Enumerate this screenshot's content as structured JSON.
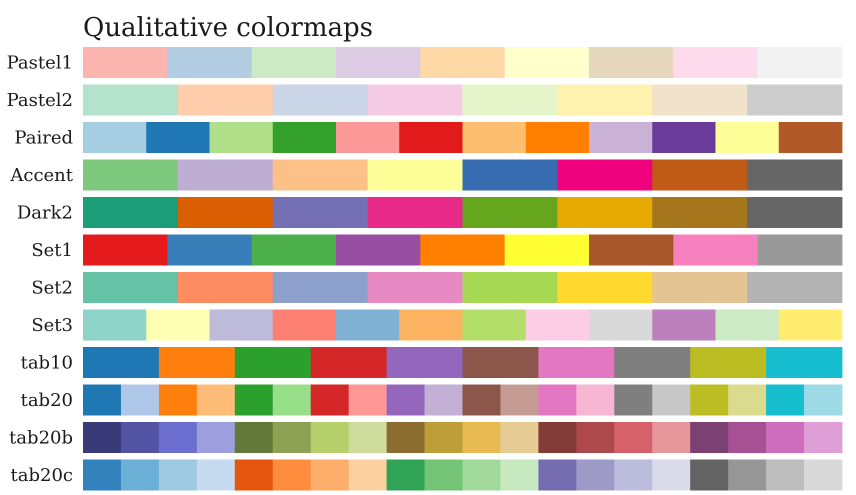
{
  "chart_data": {
    "type": "heatmap",
    "title": "Qualitative colormaps",
    "colormaps": [
      {
        "name": "Pastel1",
        "colors": [
          "#fbb4ae",
          "#b3cde3",
          "#ccebc5",
          "#decbe4",
          "#fed9a6",
          "#ffffcc",
          "#e5d8bd",
          "#fddaec",
          "#f2f2f2"
        ]
      },
      {
        "name": "Pastel2",
        "colors": [
          "#b3e2cd",
          "#fdcdac",
          "#cbd5e8",
          "#f4cae4",
          "#e6f5c9",
          "#fff2ae",
          "#f1e2cc",
          "#cccccc"
        ]
      },
      {
        "name": "Paired",
        "colors": [
          "#a6cee3",
          "#1f78b4",
          "#b2df8a",
          "#33a02c",
          "#fb9a99",
          "#e31a1c",
          "#fdbf6f",
          "#ff7f00",
          "#cab2d6",
          "#6a3d9a",
          "#ffff99",
          "#b15928"
        ]
      },
      {
        "name": "Accent",
        "colors": [
          "#7fc97f",
          "#beaed4",
          "#fdc086",
          "#ffff99",
          "#386cb0",
          "#f0027f",
          "#bf5b17",
          "#666666"
        ]
      },
      {
        "name": "Dark2",
        "colors": [
          "#1b9e77",
          "#d95f02",
          "#7570b3",
          "#e7298a",
          "#66a61e",
          "#e6ab02",
          "#a6761d",
          "#666666"
        ]
      },
      {
        "name": "Set1",
        "colors": [
          "#e41a1c",
          "#377eb8",
          "#4daf4a",
          "#984ea3",
          "#ff7f00",
          "#ffff33",
          "#a65628",
          "#f781bf",
          "#999999"
        ]
      },
      {
        "name": "Set2",
        "colors": [
          "#66c2a5",
          "#fc8d62",
          "#8da0cb",
          "#e78ac3",
          "#a6d854",
          "#ffd92f",
          "#e5c494",
          "#b3b3b3"
        ]
      },
      {
        "name": "Set3",
        "colors": [
          "#8dd3c7",
          "#ffffb3",
          "#bebada",
          "#fb8072",
          "#80b1d3",
          "#fdb462",
          "#b3de69",
          "#fccde5",
          "#d9d9d9",
          "#bc80bd",
          "#ccebc5",
          "#ffed6f"
        ]
      },
      {
        "name": "tab10",
        "colors": [
          "#1f77b4",
          "#ff7f0e",
          "#2ca02c",
          "#d62728",
          "#9467bd",
          "#8c564b",
          "#e377c2",
          "#7f7f7f",
          "#bcbd22",
          "#17becf"
        ]
      },
      {
        "name": "tab20",
        "colors": [
          "#1f77b4",
          "#aec7e8",
          "#ff7f0e",
          "#ffbb78",
          "#2ca02c",
          "#98df8a",
          "#d62728",
          "#ff9896",
          "#9467bd",
          "#c5b0d5",
          "#8c564b",
          "#c49c94",
          "#e377c2",
          "#f7b6d2",
          "#7f7f7f",
          "#c7c7c7",
          "#bcbd22",
          "#dbdb8d",
          "#17becf",
          "#9edae5"
        ]
      },
      {
        "name": "tab20b",
        "colors": [
          "#393b79",
          "#5254a3",
          "#6b6ecf",
          "#9c9ede",
          "#637939",
          "#8ca252",
          "#b5cf6b",
          "#cedb9c",
          "#8c6d31",
          "#bd9e39",
          "#e7ba52",
          "#e7cb94",
          "#843c39",
          "#ad494a",
          "#d6616b",
          "#e7969c",
          "#7b4173",
          "#a55194",
          "#ce6dbd",
          "#de9ed6"
        ]
      },
      {
        "name": "tab20c",
        "colors": [
          "#3182bd",
          "#6baed6",
          "#9ecae1",
          "#c6dbef",
          "#e6550d",
          "#fd8d3c",
          "#fdae6b",
          "#fdd0a2",
          "#31a354",
          "#74c476",
          "#a1d99b",
          "#c7e9c0",
          "#756bb1",
          "#9e9ac8",
          "#bcbddc",
          "#dadaeb",
          "#636363",
          "#969696",
          "#bdbdbd",
          "#d9d9d9"
        ]
      }
    ]
  }
}
